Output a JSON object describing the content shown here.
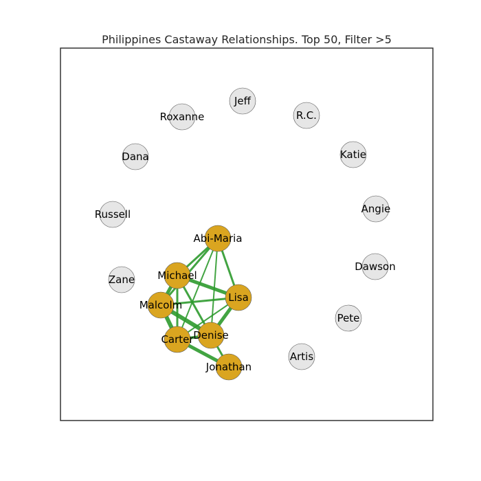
{
  "title": "Philippines Castaway Relationships. Top 50, Filter >5",
  "colors": {
    "active_node": "#DAA520",
    "inactive_node": "#E6E6E6",
    "edge": "#2E9A2E",
    "node_stroke": "#555555",
    "frame": "#333333"
  },
  "nodes": [
    {
      "id": "jeff",
      "label": "Jeff",
      "active": false
    },
    {
      "id": "rc",
      "label": "R.C.",
      "active": false
    },
    {
      "id": "roxanne",
      "label": "Roxanne",
      "active": false
    },
    {
      "id": "katie",
      "label": "Katie",
      "active": false
    },
    {
      "id": "dana",
      "label": "Dana",
      "active": false
    },
    {
      "id": "angie",
      "label": "Angie",
      "active": false
    },
    {
      "id": "russell",
      "label": "Russell",
      "active": false
    },
    {
      "id": "dawson",
      "label": "Dawson",
      "active": false
    },
    {
      "id": "zane",
      "label": "Zane",
      "active": false
    },
    {
      "id": "pete",
      "label": "Pete",
      "active": false
    },
    {
      "id": "artis",
      "label": "Artis",
      "active": false
    },
    {
      "id": "abi-maria",
      "label": "Abi-Maria",
      "active": true
    },
    {
      "id": "michael",
      "label": "Michael",
      "active": true
    },
    {
      "id": "lisa",
      "label": "Lisa",
      "active": true
    },
    {
      "id": "malcolm",
      "label": "Malcolm",
      "active": true
    },
    {
      "id": "denise",
      "label": "Denise",
      "active": true
    },
    {
      "id": "carter",
      "label": "Carter",
      "active": true
    },
    {
      "id": "jonathan",
      "label": "Jonathan",
      "active": true
    }
  ],
  "edges": [
    {
      "source": "abi-maria",
      "target": "michael",
      "weight": 2
    },
    {
      "source": "abi-maria",
      "target": "malcolm",
      "weight": 2
    },
    {
      "source": "abi-maria",
      "target": "lisa",
      "weight": 2
    },
    {
      "source": "abi-maria",
      "target": "carter",
      "weight": 1
    },
    {
      "source": "abi-maria",
      "target": "denise",
      "weight": 1
    },
    {
      "source": "michael",
      "target": "lisa",
      "weight": 4
    },
    {
      "source": "michael",
      "target": "malcolm",
      "weight": 4
    },
    {
      "source": "michael",
      "target": "carter",
      "weight": 2
    },
    {
      "source": "michael",
      "target": "denise",
      "weight": 2
    },
    {
      "source": "lisa",
      "target": "malcolm",
      "weight": 2
    },
    {
      "source": "lisa",
      "target": "carter",
      "weight": 1
    },
    {
      "source": "lisa",
      "target": "denise",
      "weight": 4
    },
    {
      "source": "malcolm",
      "target": "denise",
      "weight": 5
    },
    {
      "source": "malcolm",
      "target": "carter",
      "weight": 5
    },
    {
      "source": "carter",
      "target": "denise",
      "weight": 3
    },
    {
      "source": "carter",
      "target": "jonathan",
      "weight": 4
    },
    {
      "source": "denise",
      "target": "jonathan",
      "weight": 2
    }
  ]
}
